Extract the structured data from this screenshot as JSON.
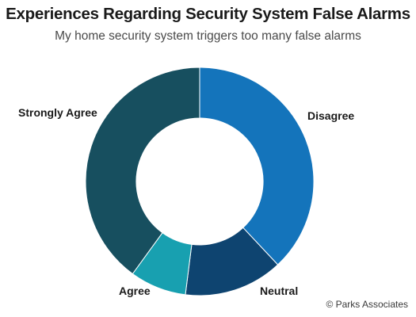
{
  "chart_data": {
    "type": "pie",
    "title": "Experiences Regarding Security System False Alarms",
    "subtitle": "My home security system triggers too many false alarms",
    "categories": [
      "Disagree",
      "Neutral",
      "Agree",
      "Strongly Agree"
    ],
    "values": [
      38,
      14,
      8,
      40
    ],
    "colors": [
      "#1474bb",
      "#0e4470",
      "#18a0b0",
      "#174f5f"
    ],
    "donut": true,
    "data_labels": false,
    "legend": "none"
  },
  "credit": "© Parks Associates"
}
